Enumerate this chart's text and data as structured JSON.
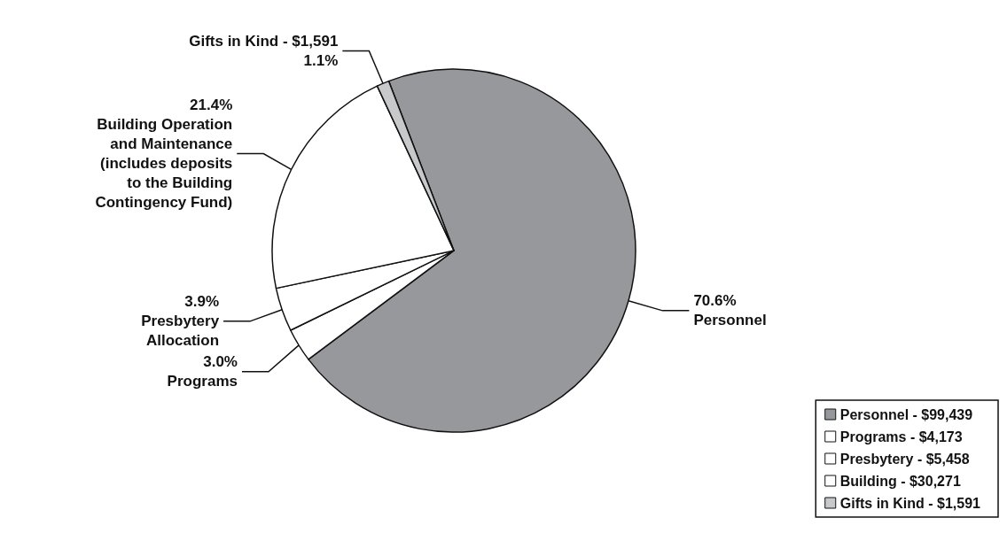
{
  "chart_data": {
    "type": "pie",
    "categories": [
      "Personnel - $99,439",
      "Programs - $4,173",
      "Presbytery - $5,458",
      "Building - $30,271",
      "Gifts in Kind - $1,591"
    ],
    "values": [
      70.6,
      3.0,
      3.9,
      21.4,
      1.1
    ],
    "colors": [
      "#97989b",
      "#ffffff",
      "#ffffff",
      "#ffffff",
      "#c8c9cb"
    ],
    "value_labels": [
      "70.6%\nPersonnel",
      "3.0%\nPrograms",
      "3.9%\nPresbytery\nAllocation",
      "21.4%\nBuilding Operation\nand Maintenance\n(includes deposits\nto the Building\nContingency Fund)",
      "Gifts in Kind - $1,591\n1.1%"
    ],
    "legend": "bottom right"
  }
}
